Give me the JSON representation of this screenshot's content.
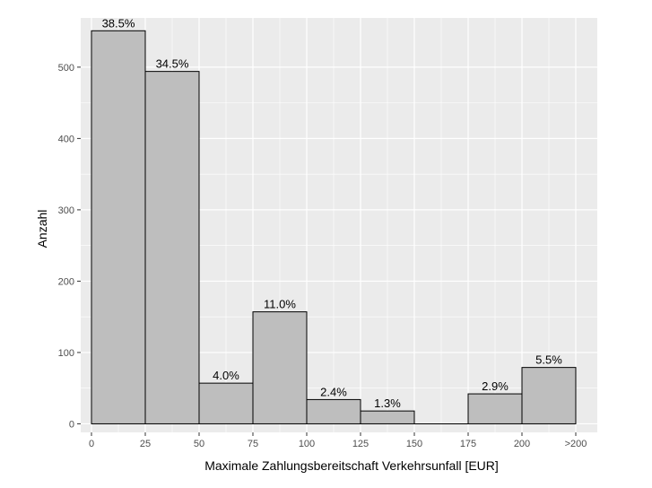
{
  "chart_data": {
    "type": "bar",
    "title": "",
    "xlabel": "Maximale Zahlungsbereitschaft Verkehrsunfall [EUR]",
    "ylabel": "Anzahl",
    "x_ticks": [
      "0",
      "25",
      "50",
      "75",
      "100",
      "125",
      "150",
      "175",
      "200",
      ">200"
    ],
    "y_ticks": [
      "0",
      "100",
      "200",
      "300",
      "400",
      "500"
    ],
    "xlim": [
      -5,
      235
    ],
    "ylim": [
      -12,
      569
    ],
    "bins": [
      {
        "from": 0,
        "to": 25,
        "count": 551,
        "label": "38.5%"
      },
      {
        "from": 25,
        "to": 50,
        "count": 494,
        "label": "34.5%"
      },
      {
        "from": 50,
        "to": 75,
        "count": 57,
        "label": "4.0%"
      },
      {
        "from": 75,
        "to": 100,
        "count": 157,
        "label": "11.0%"
      },
      {
        "from": 100,
        "to": 125,
        "count": 34,
        "label": "2.4%"
      },
      {
        "from": 125,
        "to": 150,
        "count": 18,
        "label": "1.3%"
      },
      {
        "from": 150,
        "to": 175,
        "count": 0,
        "label": ""
      },
      {
        "from": 175,
        "to": 200,
        "count": 42,
        "label": "2.9%"
      },
      {
        "from": 200,
        "to": 225,
        "count": 79,
        "label": "5.5%"
      }
    ],
    "grid": true,
    "colors": {
      "panel_background": "#ebebeb",
      "grid_major": "#ffffff",
      "bar_fill": "#bebebe",
      "bar_outline": "#000000"
    }
  }
}
